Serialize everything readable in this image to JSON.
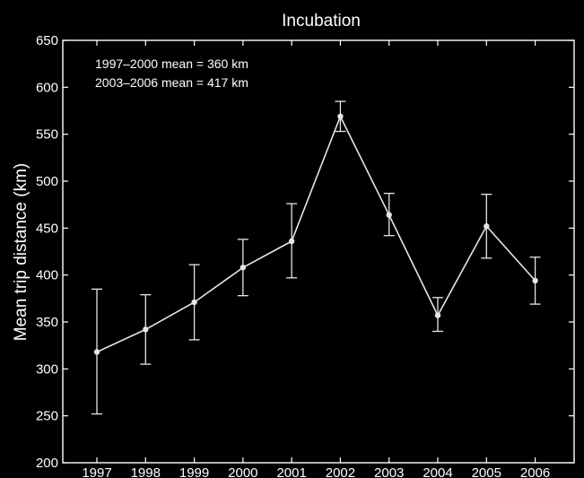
{
  "chart_data": {
    "type": "line",
    "title": "Incubation",
    "xlabel": "",
    "ylabel": "Mean trip distance (km)",
    "xlim": [
      1996.3,
      2006.8
    ],
    "ylim": [
      200,
      650
    ],
    "yticks": [
      200,
      250,
      300,
      350,
      400,
      450,
      500,
      550,
      600,
      650
    ],
    "categories": [
      "1997",
      "1998",
      "1999",
      "2000",
      "2001",
      "2002",
      "2003",
      "2004",
      "2005",
      "2006"
    ],
    "values": [
      318,
      342,
      371,
      408,
      436,
      569,
      464,
      357,
      452,
      394
    ],
    "error_low": [
      252,
      305,
      331,
      378,
      397,
      553,
      442,
      340,
      418,
      369
    ],
    "error_high": [
      385,
      379,
      411,
      438,
      476,
      585,
      487,
      376,
      486,
      419
    ],
    "annotations": [
      "1997–2000 mean = 360 km",
      "2003–2006 mean = 417 km"
    ],
    "grid": false,
    "legend": "none",
    "colors": {
      "background": "#000000",
      "foreground": "#ffffff",
      "series": "#e6e6e6"
    }
  }
}
